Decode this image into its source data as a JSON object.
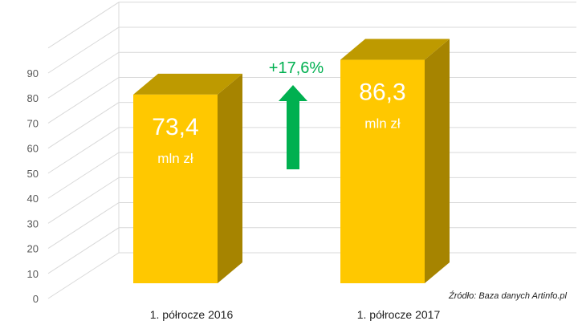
{
  "chart_data": {
    "type": "bar",
    "categories": [
      "1. półrocze 2016",
      "1. półrocze 2017"
    ],
    "values": [
      73.4,
      86.3
    ],
    "value_labels": [
      "73,4",
      "86,3"
    ],
    "unit_label": "mln zł",
    "yticks": [
      "0",
      "10",
      "20",
      "30",
      "40",
      "50",
      "60",
      "70",
      "80",
      "90"
    ],
    "ylim": [
      0,
      90
    ],
    "grid": true,
    "change_label": "+17,6%",
    "title": "",
    "xlabel": "",
    "ylabel": ""
  },
  "source": "Źródło: Baza danych Artinfo.pl",
  "colors": {
    "bar_front": "#FFC800",
    "bar_side": "#A68400",
    "bar_top": "#BE9A00",
    "grid": "#D9D9D9",
    "arrow": "#00B050",
    "change_text": "#00B050",
    "axis_text": "#595959"
  }
}
